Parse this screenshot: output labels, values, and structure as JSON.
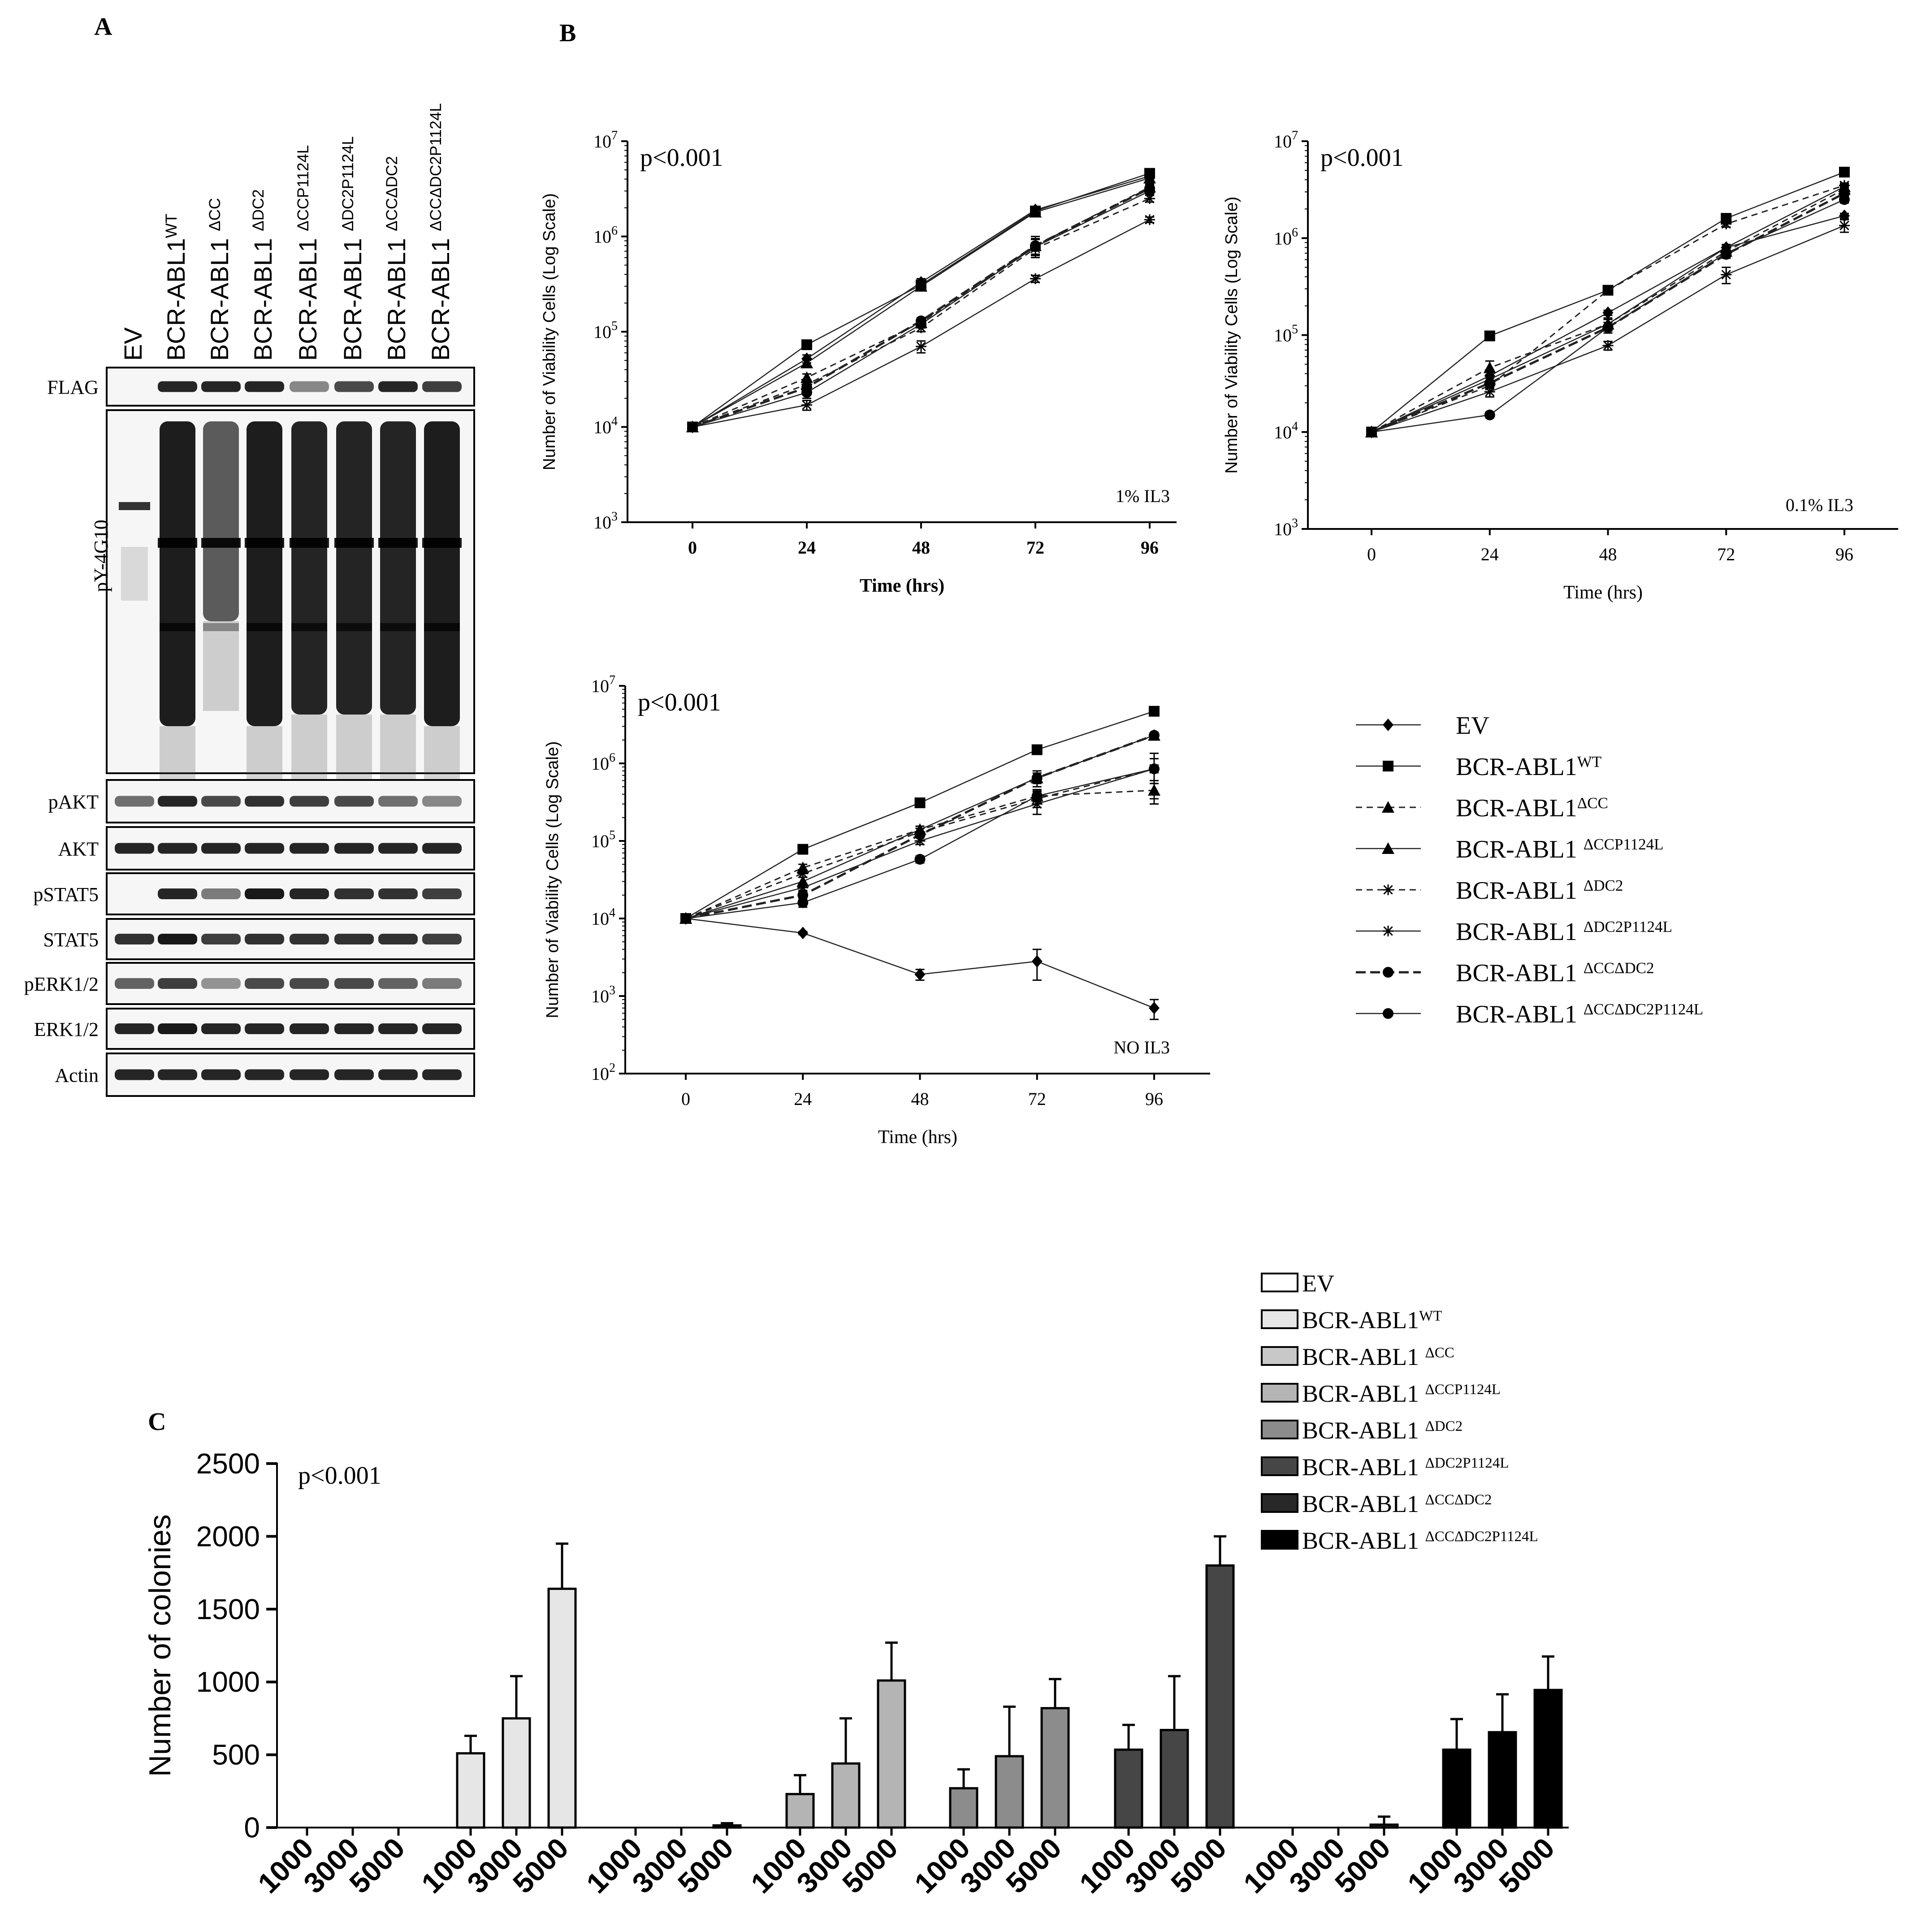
{
  "panels": {
    "A": "A",
    "B": "B",
    "C": "C"
  },
  "blot": {
    "lanes": [
      {
        "name": "EV",
        "sup": ""
      },
      {
        "name": "BCR-ABL1",
        "sup": "WT"
      },
      {
        "name": "BCR-ABL1 ",
        "sup": "ΔCC"
      },
      {
        "name": "BCR-ABL1 ",
        "sup": "ΔDC2"
      },
      {
        "name": "BCR-ABL1 ",
        "sup": "ΔCCP1124L"
      },
      {
        "name": "BCR-ABL1 ",
        "sup": "ΔDC2P1124L"
      },
      {
        "name": "BCR-ABL1 ",
        "sup": "ΔCCΔDC2"
      },
      {
        "name": "BCR-ABL1 ",
        "sup": "ΔCCΔDC2P1124L"
      }
    ],
    "rows": [
      {
        "label": "FLAG",
        "intensity": [
          0,
          0.85,
          0.85,
          0.85,
          0.45,
          0.7,
          0.85,
          0.75
        ]
      },
      {
        "label": "pY-4G10",
        "intensity": [
          0.25,
          1,
          0.55,
          1,
          0.95,
          0.95,
          0.95,
          1
        ]
      },
      {
        "label": "pAKT",
        "intensity": [
          0.55,
          0.85,
          0.7,
          0.8,
          0.75,
          0.7,
          0.55,
          0.45
        ]
      },
      {
        "label": "AKT",
        "intensity": [
          0.85,
          0.85,
          0.85,
          0.85,
          0.85,
          0.85,
          0.85,
          0.85
        ]
      },
      {
        "label": "pSTAT5",
        "intensity": [
          0,
          0.85,
          0.5,
          0.9,
          0.85,
          0.8,
          0.8,
          0.75
        ]
      },
      {
        "label": "STAT5",
        "intensity": [
          0.8,
          0.9,
          0.75,
          0.8,
          0.8,
          0.8,
          0.8,
          0.75
        ]
      },
      {
        "label": "pERK1/2",
        "intensity": [
          0.6,
          0.75,
          0.4,
          0.7,
          0.7,
          0.7,
          0.6,
          0.5
        ]
      },
      {
        "label": "ERK1/2",
        "intensity": [
          0.85,
          0.9,
          0.85,
          0.85,
          0.85,
          0.85,
          0.85,
          0.85
        ]
      },
      {
        "label": "Actin",
        "intensity": [
          0.85,
          0.85,
          0.85,
          0.85,
          0.85,
          0.85,
          0.85,
          0.85
        ]
      }
    ]
  },
  "chart_data": [
    {
      "type": "line",
      "panel": "B",
      "id": "il3-1pct",
      "title": "",
      "pvalue": "p<0.001",
      "condition": "1% IL3",
      "xlabel": "Time (hrs)",
      "ylabel": "Number of Viability Cells (Log Scale)",
      "scale": "log10",
      "ylim": [
        1000,
        10000000
      ],
      "ytick_exponents": [
        3,
        4,
        5,
        6,
        7
      ],
      "x": [
        0,
        24,
        48,
        72,
        96
      ],
      "series": [
        {
          "name": "EV",
          "values": [
            10000,
            52000,
            330000,
            1900000,
            4300000
          ],
          "err": [
            0,
            5000,
            30000,
            150000,
            300000
          ]
        },
        {
          "name": "BCR-ABL1 WT",
          "values": [
            10000,
            73000,
            310000,
            1850000,
            4600000
          ],
          "err": [
            0,
            4000,
            20000,
            100000,
            200000
          ]
        },
        {
          "name": "BCR-ABL1 ΔCC",
          "values": [
            10000,
            33000,
            125000,
            800000,
            3300000
          ],
          "err": [
            0,
            3000,
            10000,
            150000,
            300000
          ]
        },
        {
          "name": "BCR-ABL1 ΔCCP1124L",
          "values": [
            10000,
            47000,
            300000,
            1800000,
            4100000
          ],
          "err": [
            0,
            4000,
            20000,
            150000,
            300000
          ]
        },
        {
          "name": "BCR-ABL1 ΔDC2",
          "values": [
            10000,
            28000,
            110000,
            750000,
            2500000
          ],
          "err": [
            0,
            3000,
            10000,
            100000,
            200000
          ]
        },
        {
          "name": "BCR-ABL1 ΔDC2P1124L",
          "values": [
            10000,
            17000,
            70000,
            360000,
            1500000
          ],
          "err": [
            0,
            2000,
            10000,
            30000,
            100000
          ]
        },
        {
          "name": "BCR-ABL1 ΔCCΔDC2",
          "values": [
            10000,
            26000,
            130000,
            800000,
            3200000
          ],
          "err": [
            0,
            3000,
            10000,
            200000,
            300000
          ]
        },
        {
          "name": "BCR-ABL1 ΔCCΔDC2P1124L",
          "values": [
            10000,
            23000,
            120000,
            780000,
            3000000
          ],
          "err": [
            0,
            3000,
            10000,
            150000,
            300000
          ]
        }
      ]
    },
    {
      "type": "line",
      "panel": "B",
      "id": "il3-0.1pct",
      "title": "",
      "pvalue": "p<0.001",
      "condition": "0.1% IL3",
      "xlabel": "Time (hrs)",
      "ylabel": "Number of Viability Cells (Log  Scale)",
      "scale": "log10",
      "ylim": [
        1000,
        10000000
      ],
      "ytick_exponents": [
        3,
        4,
        5,
        6,
        7
      ],
      "x": [
        0,
        24,
        48,
        72,
        96
      ],
      "series": [
        {
          "name": "EV",
          "values": [
            10000,
            38000,
            170000,
            800000,
            1700000
          ],
          "err": [
            0,
            4000,
            10000,
            50000,
            100000
          ]
        },
        {
          "name": "BCR-ABL1 WT",
          "values": [
            10000,
            98000,
            290000,
            1600000,
            4800000
          ],
          "err": [
            0,
            5000,
            20000,
            100000,
            200000
          ]
        },
        {
          "name": "BCR-ABL1 ΔCC",
          "values": [
            10000,
            46000,
            130000,
            730000,
            3200000
          ],
          "err": [
            0,
            8000,
            20000,
            60000,
            200000
          ]
        },
        {
          "name": "BCR-ABL1 ΔCCP1124L",
          "values": [
            10000,
            35000,
            130000,
            800000,
            3400000
          ],
          "err": [
            0,
            4000,
            15000,
            60000,
            200000
          ]
        },
        {
          "name": "BCR-ABL1 ΔDC2",
          "values": [
            10000,
            30000,
            290000,
            1400000,
            3500000
          ],
          "err": [
            0,
            4000,
            20000,
            100000,
            200000
          ]
        },
        {
          "name": "BCR-ABL1 ΔDC2P1124L",
          "values": [
            10000,
            26000,
            78000,
            420000,
            1350000
          ],
          "err": [
            0,
            3000,
            8000,
            80000,
            200000
          ]
        },
        {
          "name": "BCR-ABL1 ΔCCΔDC2",
          "values": [
            10000,
            32000,
            120000,
            680000,
            2900000
          ],
          "err": [
            0,
            4000,
            15000,
            60000,
            200000
          ]
        },
        {
          "name": "BCR-ABL1 ΔCCΔDC2P1124L",
          "values": [
            10000,
            15000,
            120000,
            700000,
            2500000
          ],
          "err": [
            0,
            1000,
            15000,
            60000,
            200000
          ]
        }
      ]
    },
    {
      "type": "line",
      "panel": "B",
      "id": "no-il3",
      "title": "",
      "pvalue": "p<0.001",
      "condition": "NO IL3",
      "xlabel": "Time (hrs)",
      "ylabel": "Number of Viability Cells (Log Scale)",
      "scale": "log10",
      "ylim": [
        100,
        10000000
      ],
      "ytick_exponents": [
        2,
        3,
        4,
        5,
        6,
        7
      ],
      "x": [
        0,
        24,
        48,
        72,
        96
      ],
      "series": [
        {
          "name": "EV",
          "values": [
            10000,
            6500,
            1900,
            2800,
            700
          ],
          "err": [
            0,
            300,
            300,
            1200,
            200
          ]
        },
        {
          "name": "BCR-ABL1 WT",
          "values": [
            10000,
            78000,
            310000,
            1500000,
            4700000
          ],
          "err": [
            0,
            5000,
            20000,
            80000,
            200000
          ]
        },
        {
          "name": "BCR-ABL1 ΔCC",
          "values": [
            10000,
            45000,
            140000,
            380000,
            450000
          ],
          "err": [
            0,
            5000,
            15000,
            80000,
            150000
          ]
        },
        {
          "name": "BCR-ABL1 ΔCCP1124L",
          "values": [
            10000,
            30000,
            140000,
            650000,
            2300000
          ],
          "err": [
            0,
            4000,
            15000,
            100000,
            200000
          ]
        },
        {
          "name": "BCR-ABL1 ΔDC2",
          "values": [
            10000,
            38000,
            130000,
            350000,
            850000
          ],
          "err": [
            0,
            4000,
            15000,
            80000,
            300000
          ]
        },
        {
          "name": "BCR-ABL1 ΔDC2P1124L",
          "values": [
            10000,
            25000,
            100000,
            300000,
            850000
          ],
          "err": [
            0,
            3000,
            10000,
            80000,
            500000
          ]
        },
        {
          "name": "BCR-ABL1 ΔCCΔDC2",
          "values": [
            10000,
            20000,
            120000,
            650000,
            2300000
          ],
          "err": [
            0,
            3000,
            10000,
            150000,
            200000
          ]
        },
        {
          "name": "BCR-ABL1 ΔCCΔDC2P1124L",
          "values": [
            10000,
            16000,
            58000,
            380000,
            850000
          ],
          "err": [
            0,
            2000,
            6000,
            60000,
            300000
          ]
        }
      ]
    },
    {
      "type": "bar",
      "panel": "C",
      "id": "colonies",
      "title": "",
      "pvalue": "p<0.001",
      "xlabel": "",
      "ylabel": "Number of colonies",
      "ylim": [
        0,
        2500
      ],
      "yticks": [
        0,
        500,
        1000,
        1500,
        2000,
        2500
      ],
      "categories": [
        "1000",
        "3000",
        "5000"
      ],
      "series": [
        {
          "name": "EV",
          "values": [
            0,
            0,
            0
          ],
          "err": [
            0,
            0,
            0
          ]
        },
        {
          "name": "BCR-ABL1 WT",
          "values": [
            510,
            750,
            1640
          ],
          "err": [
            120,
            290,
            310
          ]
        },
        {
          "name": "BCR-ABL1 ΔCC",
          "values": [
            0,
            0,
            15
          ],
          "err": [
            0,
            0,
            15
          ]
        },
        {
          "name": "BCR-ABL1 ΔCCP1124L",
          "values": [
            230,
            440,
            1010
          ],
          "err": [
            130,
            310,
            260
          ]
        },
        {
          "name": "BCR-ABL1 ΔDC2",
          "values": [
            270,
            490,
            820
          ],
          "err": [
            130,
            340,
            200
          ]
        },
        {
          "name": "BCR-ABL1 ΔDC2P1124L",
          "values": [
            535,
            670,
            1800
          ],
          "err": [
            170,
            370,
            200
          ]
        },
        {
          "name": "BCR-ABL1 ΔCCΔDC2",
          "values": [
            0,
            0,
            20
          ],
          "err": [
            0,
            0,
            55
          ]
        },
        {
          "name": "BCR-ABL1 ΔCCΔDC2P1124L",
          "values": [
            535,
            655,
            945
          ],
          "err": [
            210,
            260,
            230
          ]
        }
      ]
    }
  ],
  "legendB": [
    {
      "name": "EV",
      "sup": ""
    },
    {
      "name": "BCR-ABL1",
      "sup": "WT"
    },
    {
      "name": "BCR-ABL1",
      "sup": "ΔCC"
    },
    {
      "name": "BCR-ABL1 ",
      "sup": "ΔCCP1124L"
    },
    {
      "name": "BCR-ABL1 ",
      "sup": "ΔDC2"
    },
    {
      "name": "BCR-ABL1 ",
      "sup": "ΔDC2P1124L"
    },
    {
      "name": "BCR-ABL1 ",
      "sup": "ΔCCΔDC2"
    },
    {
      "name": "BCR-ABL1 ",
      "sup": "ΔCCΔDC2P1124L"
    }
  ],
  "legendC": [
    {
      "name": "EV",
      "sup": "",
      "color": "#ffffff"
    },
    {
      "name": "BCR-ABL1",
      "sup": "WT",
      "color": "#e6e6e6"
    },
    {
      "name": "BCR-ABL1 ",
      "sup": "ΔCC",
      "color": "#c8c8c8"
    },
    {
      "name": "BCR-ABL1 ",
      "sup": "ΔCCP1124L",
      "color": "#b4b4b4"
    },
    {
      "name": "BCR-ABL1 ",
      "sup": "ΔDC2",
      "color": "#8c8c8c"
    },
    {
      "name": "BCR-ABL1 ",
      "sup": "ΔDC2P1124L",
      "color": "#464646"
    },
    {
      "name": "BCR-ABL1 ",
      "sup": "ΔCCΔDC2",
      "color": "#282828"
    },
    {
      "name": "BCR-ABL1 ",
      "sup": "ΔCCΔDC2P1124L",
      "color": "#000000"
    }
  ]
}
